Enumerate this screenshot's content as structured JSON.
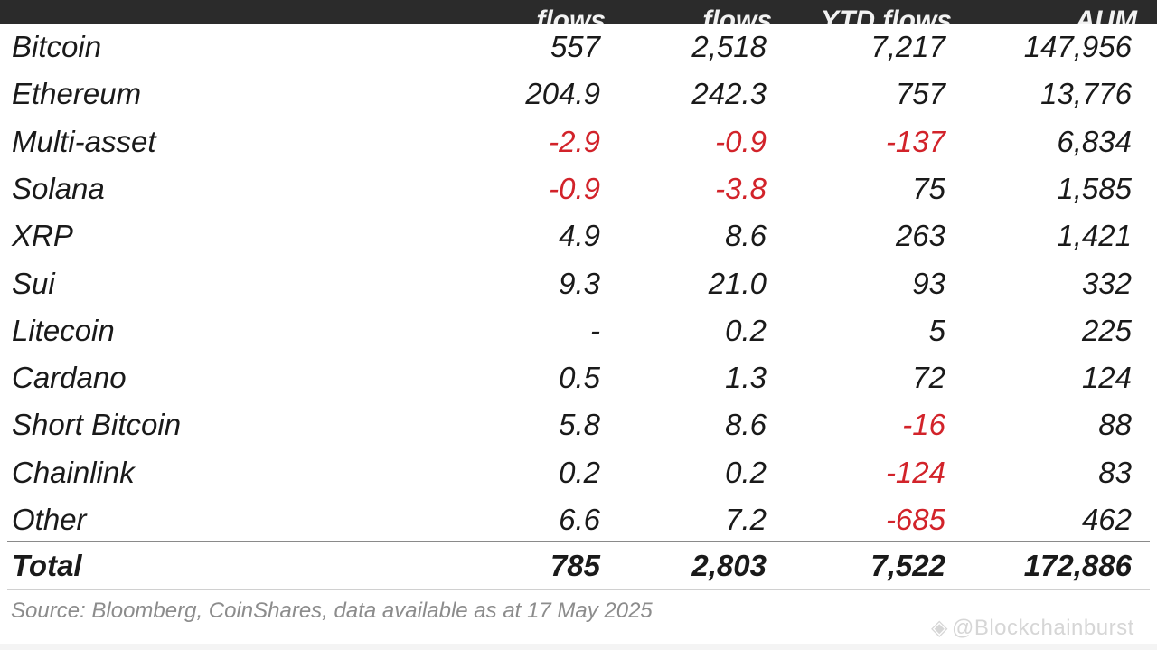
{
  "table": {
    "headers": [
      "flows",
      "flows",
      "YTD flows",
      "AUM"
    ],
    "rows": [
      {
        "asset": "Bitcoin",
        "c1": "557",
        "c2": "2,518",
        "c3": "7,217",
        "c4": "147,956"
      },
      {
        "asset": "Ethereum",
        "c1": "204.9",
        "c2": "242.3",
        "c3": "757",
        "c4": "13,776"
      },
      {
        "asset": "Multi-asset",
        "c1": "-2.9",
        "c2": "-0.9",
        "c3": "-137",
        "c4": "6,834"
      },
      {
        "asset": "Solana",
        "c1": "-0.9",
        "c2": "-3.8",
        "c3": "75",
        "c4": "1,585"
      },
      {
        "asset": "XRP",
        "c1": "4.9",
        "c2": "8.6",
        "c3": "263",
        "c4": "1,421"
      },
      {
        "asset": "Sui",
        "c1": "9.3",
        "c2": "21.0",
        "c3": "93",
        "c4": "332"
      },
      {
        "asset": "Litecoin",
        "c1": "-",
        "c2": "0.2",
        "c3": "5",
        "c4": "225"
      },
      {
        "asset": "Cardano",
        "c1": "0.5",
        "c2": "1.3",
        "c3": "72",
        "c4": "124"
      },
      {
        "asset": "Short Bitcoin",
        "c1": "5.8",
        "c2": "8.6",
        "c3": "-16",
        "c4": "88"
      },
      {
        "asset": "Chainlink",
        "c1": "0.2",
        "c2": "0.2",
        "c3": "-124",
        "c4": "83"
      },
      {
        "asset": "Other",
        "c1": "6.6",
        "c2": "7.2",
        "c3": "-685",
        "c4": "462"
      }
    ],
    "total": {
      "asset": "Total",
      "c1": "785",
      "c2": "2,803",
      "c3": "7,522",
      "c4": "172,886"
    }
  },
  "source": "Source: Bloomberg, CoinShares, data available as at 17 May 2025",
  "watermark": "@Blockchainburst",
  "colors": {
    "header_bg": "#2b2b2b",
    "negative": "#d2232a",
    "text": "#1a1a1a",
    "source": "#8c8c8c"
  }
}
